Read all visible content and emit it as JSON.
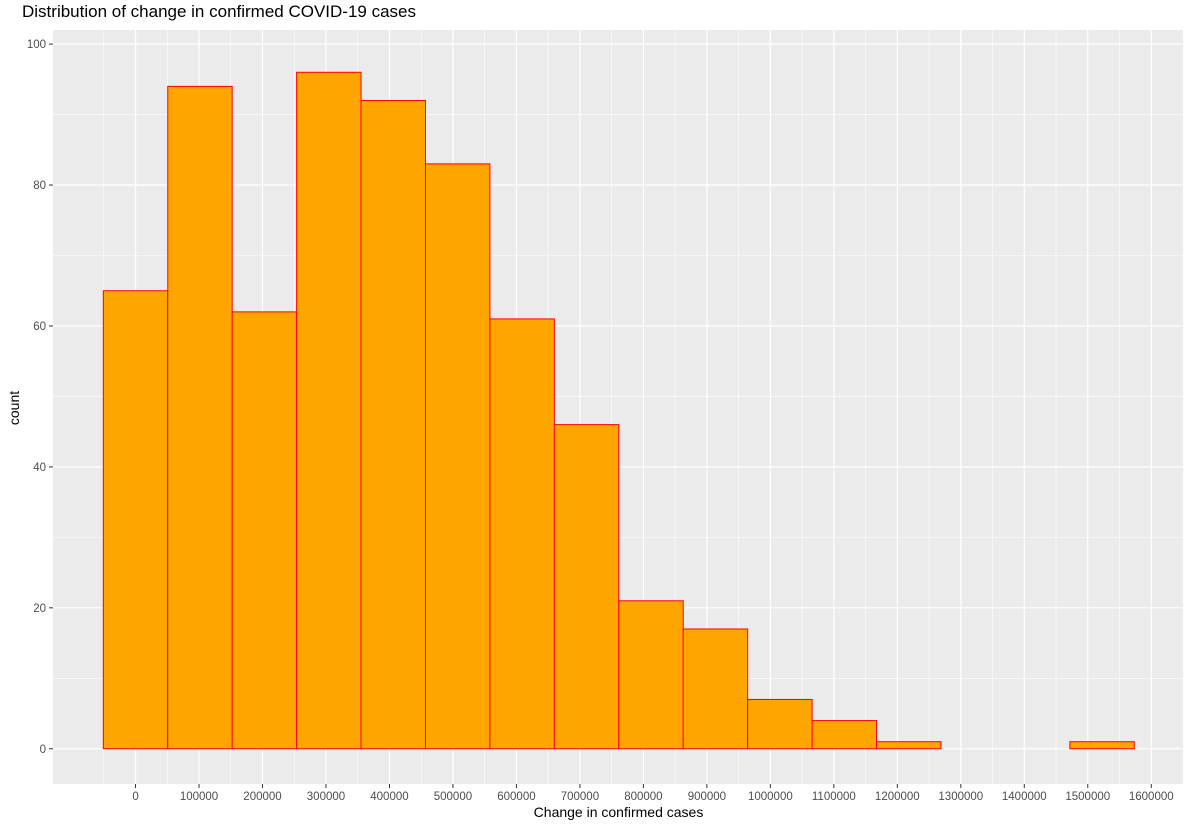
{
  "chart_data": {
    "type": "bar",
    "title": "Distribution of change in confirmed COVID-19 cases",
    "xlabel": "Change in confirmed cases",
    "ylabel": "count",
    "bin_width": 101500,
    "bins": [
      {
        "x0": -50750,
        "x1": 50750,
        "count": 65
      },
      {
        "x0": 50750,
        "x1": 152250,
        "count": 94
      },
      {
        "x0": 152250,
        "x1": 253750,
        "count": 62
      },
      {
        "x0": 253750,
        "x1": 355250,
        "count": 96
      },
      {
        "x0": 355250,
        "x1": 456750,
        "count": 92
      },
      {
        "x0": 456750,
        "x1": 558250,
        "count": 83
      },
      {
        "x0": 558250,
        "x1": 659750,
        "count": 61
      },
      {
        "x0": 659750,
        "x1": 761250,
        "count": 46
      },
      {
        "x0": 761250,
        "x1": 862750,
        "count": 21
      },
      {
        "x0": 862750,
        "x1": 964250,
        "count": 17
      },
      {
        "x0": 964250,
        "x1": 1065750,
        "count": 7
      },
      {
        "x0": 1065750,
        "x1": 1167250,
        "count": 4
      },
      {
        "x0": 1167250,
        "x1": 1268750,
        "count": 1
      },
      {
        "x0": 1268750,
        "x1": 1370250,
        "count": 0
      },
      {
        "x0": 1370250,
        "x1": 1471750,
        "count": 0
      },
      {
        "x0": 1471750,
        "x1": 1573250,
        "count": 1
      }
    ],
    "x_ticks": [
      0,
      100000,
      200000,
      300000,
      400000,
      500000,
      600000,
      700000,
      800000,
      900000,
      1000000,
      1100000,
      1200000,
      1300000,
      1400000,
      1500000,
      1600000
    ],
    "y_ticks": [
      0,
      20,
      40,
      60,
      80,
      100
    ],
    "xlim": [
      -130000,
      1650000
    ],
    "ylim": [
      -5,
      102
    ],
    "grid": true,
    "colors": {
      "fill": "#FFA500",
      "outline": "#FF0000",
      "panel": "#EBEBEB",
      "grid": "#FFFFFF"
    }
  }
}
